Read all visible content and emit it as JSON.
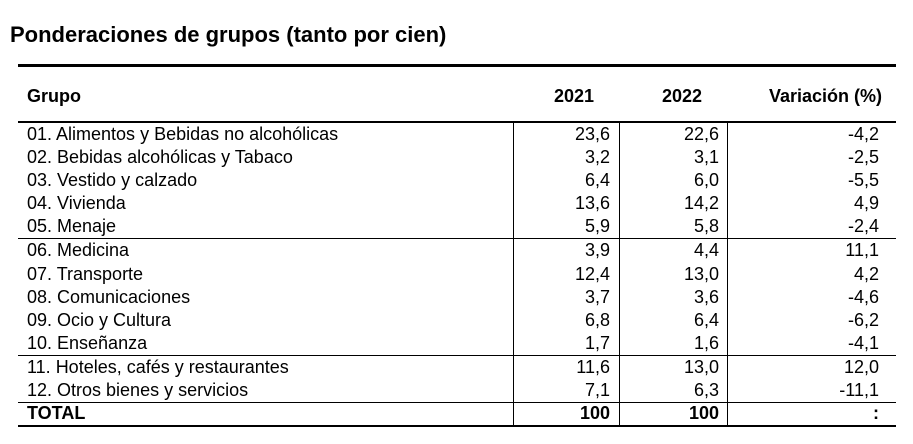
{
  "title": "Ponderaciones de grupos (tanto por cien)",
  "headers": {
    "grupo": "Grupo",
    "y2021": "2021",
    "y2022": "2022",
    "variacion": "Variación (%)"
  },
  "rows": [
    {
      "grupo": "01. Alimentos y Bebidas no alcohólicas",
      "y2021": "23,6",
      "y2022": "22,6",
      "variacion": "-4,2"
    },
    {
      "grupo": "02. Bebidas alcohólicas y Tabaco",
      "y2021": "3,2",
      "y2022": "3,1",
      "variacion": "-2,5"
    },
    {
      "grupo": "03. Vestido y calzado",
      "y2021": "6,4",
      "y2022": "6,0",
      "variacion": "-5,5"
    },
    {
      "grupo": "04. Vivienda",
      "y2021": "13,6",
      "y2022": "14,2",
      "variacion": "4,9"
    },
    {
      "grupo": "05. Menaje",
      "y2021": "5,9",
      "y2022": "5,8",
      "variacion": "-2,4"
    },
    {
      "grupo": "06. Medicina",
      "y2021": "3,9",
      "y2022": "4,4",
      "variacion": "11,1"
    },
    {
      "grupo": "07. Transporte",
      "y2021": "12,4",
      "y2022": "13,0",
      "variacion": "4,2"
    },
    {
      "grupo": "08. Comunicaciones",
      "y2021": "3,7",
      "y2022": "3,6",
      "variacion": "-4,6"
    },
    {
      "grupo": "09. Ocio y Cultura",
      "y2021": "6,8",
      "y2022": "6,4",
      "variacion": "-6,2"
    },
    {
      "grupo": "10. Enseñanza",
      "y2021": "1,7",
      "y2022": "1,6",
      "variacion": "-4,1"
    },
    {
      "grupo": "11. Hoteles, cafés y restaurantes",
      "y2021": "11,6",
      "y2022": "13,0",
      "variacion": "12,0"
    },
    {
      "grupo": "12. Otros bienes y servicios",
      "y2021": "7,1",
      "y2022": "6,3",
      "variacion": "-11,1"
    }
  ],
  "total": {
    "grupo": "TOTAL",
    "y2021": "100",
    "y2022": "100",
    "variacion": ":"
  }
}
